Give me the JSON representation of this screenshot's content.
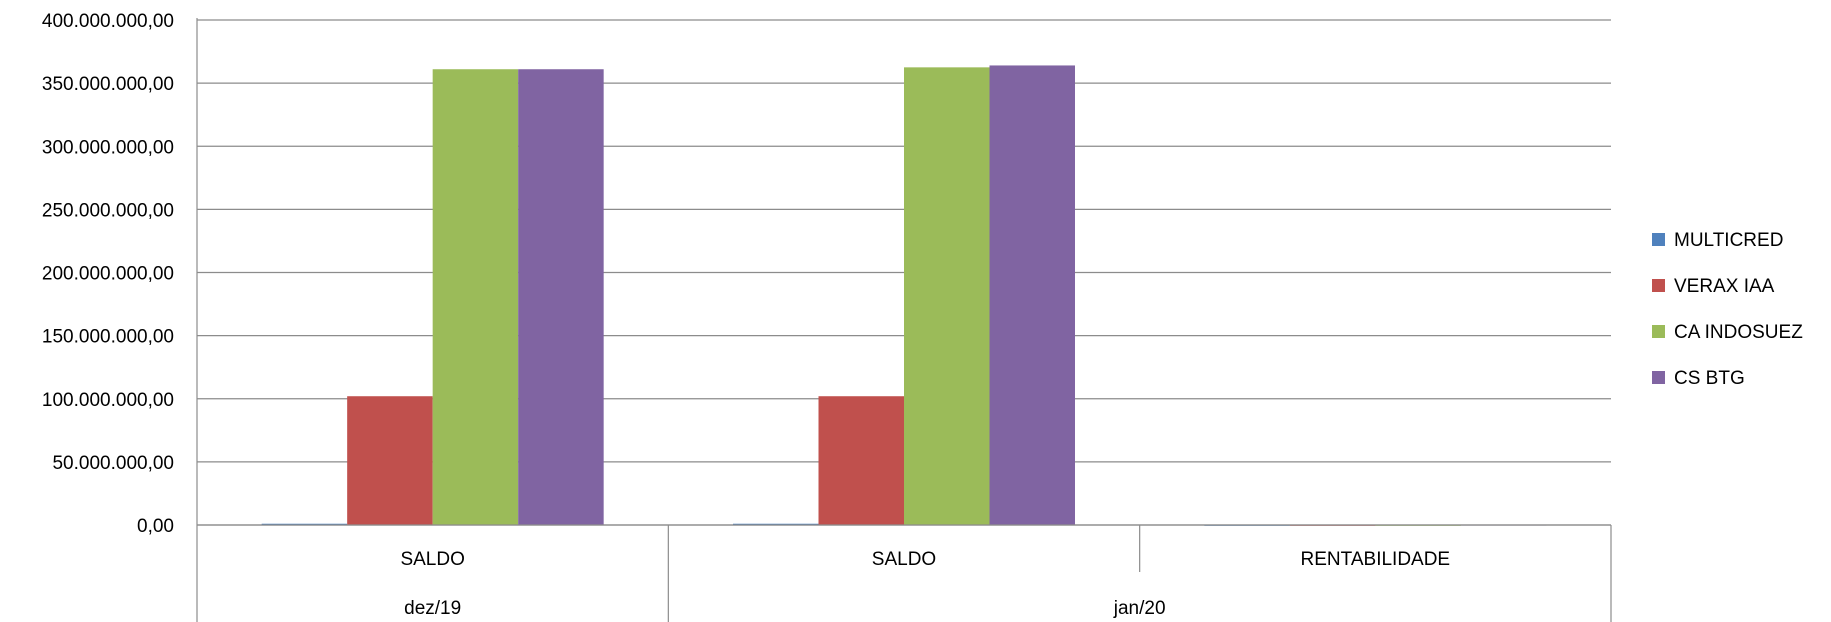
{
  "chart_data": {
    "type": "bar",
    "groups": [
      {
        "label": "dez/19",
        "categories": [
          "SALDO"
        ]
      },
      {
        "label": "jan/20",
        "categories": [
          "SALDO",
          "RENTABILIDADE"
        ]
      }
    ],
    "categories": [
      "SALDO",
      "SALDO",
      "RENTABILIDADE"
    ],
    "series": [
      {
        "name": "MULTICRED",
        "color": "#4F81BD",
        "values": [
          1000000,
          1000000,
          0
        ]
      },
      {
        "name": "VERAX IAA",
        "color": "#C0504D",
        "values": [
          102000000,
          102000000,
          0
        ]
      },
      {
        "name": "CA INDOSUEZ",
        "color": "#9BBB59",
        "values": [
          361000000,
          362500000,
          0
        ]
      },
      {
        "name": "CS BTG",
        "color": "#8064A2",
        "values": [
          361000000,
          364000000,
          200000
        ]
      }
    ],
    "ylim": [
      0,
      400000000
    ],
    "y_ticks": [
      "0,00",
      "50.000.000,00",
      "100.000.000,00",
      "150.000.000,00",
      "200.000.000,00",
      "250.000.000,00",
      "300.000.000,00",
      "350.000.000,00",
      "400.000.000,00"
    ],
    "y_tick_step": 50000000,
    "grid": true,
    "legend_position": "right"
  }
}
